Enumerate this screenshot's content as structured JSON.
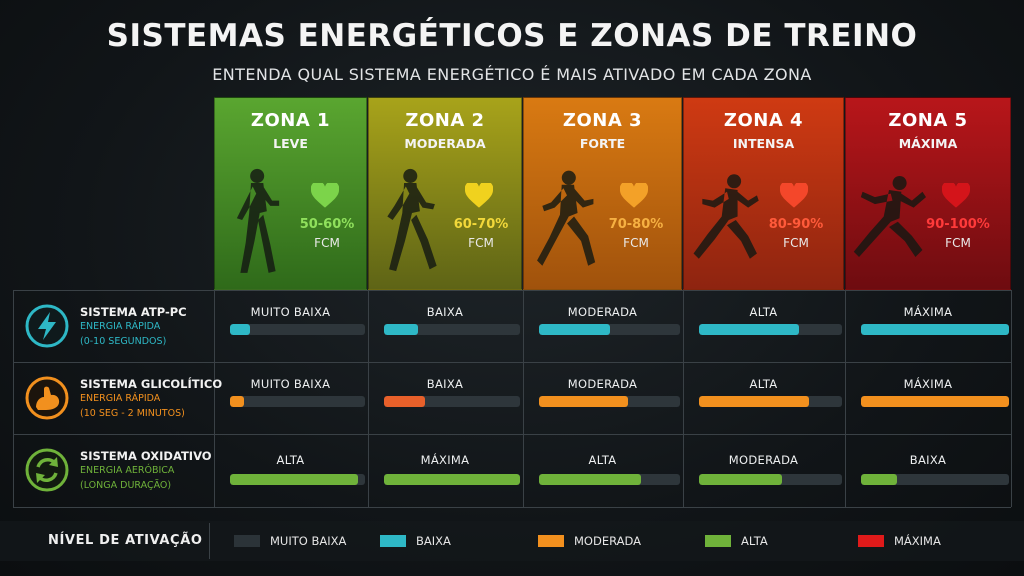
{
  "header": {
    "title": "SISTEMAS ENERGÉTICOS E ZONAS DE TREINO",
    "subtitle": "ENTENDA QUAL SISTEMA ENERGÉTICO É MAIS ATIVADO EM CADA ZONA"
  },
  "zones": [
    {
      "title": "ZONA 1",
      "intensity": "LEVE",
      "percent": "50-60%",
      "unit": "FCM",
      "heart_color": "#7cd44a",
      "percent_color": "#8fe05c",
      "bg_top": "#5aa630",
      "bg_bottom": "#2f6a1a"
    },
    {
      "title": "ZONA 2",
      "intensity": "MODERADA",
      "percent": "60-70%",
      "unit": "FCM",
      "heart_color": "#f0d21e",
      "percent_color": "#f2d83a",
      "bg_top": "#a8a31a",
      "bg_bottom": "#5e6416"
    },
    {
      "title": "ZONA 3",
      "intensity": "FORTE",
      "percent": "70-80%",
      "unit": "FCM",
      "heart_color": "#f3a128",
      "percent_color": "#f6b042",
      "bg_top": "#d97a12",
      "bg_bottom": "#a0520c"
    },
    {
      "title": "ZONA 4",
      "intensity": "INTENSA",
      "percent": "80-90%",
      "unit": "FCM",
      "heart_color": "#f4472a",
      "percent_color": "#ff5a3a",
      "bg_top": "#cf3a12",
      "bg_bottom": "#8e2410"
    },
    {
      "title": "ZONA 5",
      "intensity": "MÁXIMA",
      "percent": "90-100%",
      "unit": "FCM",
      "heart_color": "#d4141a",
      "percent_color": "#ff3a3a",
      "bg_top": "#b8161a",
      "bg_bottom": "#6e0c10"
    }
  ],
  "systems": [
    {
      "name": "SISTEMA ATP-PC",
      "sub1": "ENERGIA RÁPIDA",
      "sub2": "(0-10 SEGUNDOS)",
      "icon": "lightning-icon",
      "color": "#2eb8c6",
      "levels": [
        {
          "label": "MUITO BAIXA",
          "fill": 0.15
        },
        {
          "label": "BAIXA",
          "fill": 0.25
        },
        {
          "label": "MODERADA",
          "fill": 0.5
        },
        {
          "label": "ALTA",
          "fill": 0.7
        },
        {
          "label": "MÁXIMA",
          "fill": 1.0
        }
      ]
    },
    {
      "name": "SISTEMA GLICOLÍTICO",
      "sub1": "ENERGIA RÁPIDA",
      "sub2": "(10 SEG - 2 MINUTOS)",
      "icon": "flexed-arm-icon",
      "color": "#f2901e",
      "levels": [
        {
          "label": "MUITO BAIXA",
          "fill": 0.1
        },
        {
          "label": "BAIXA",
          "fill": 0.3
        },
        {
          "label": "MODERADA",
          "fill": 0.63
        },
        {
          "label": "ALTA",
          "fill": 0.77
        },
        {
          "label": "MÁXIMA",
          "fill": 1.0
        }
      ]
    },
    {
      "name": "SISTEMA OXIDATIVO",
      "sub1": "ENERGIA AERÓBICA",
      "sub2": "(LONGA DURAÇÃO)",
      "icon": "cycle-arrows-icon",
      "color": "#6fb23a",
      "levels": [
        {
          "label": "ALTA",
          "fill": 0.95
        },
        {
          "label": "MÁXIMA",
          "fill": 1.0
        },
        {
          "label": "ALTA",
          "fill": 0.72
        },
        {
          "label": "MODERADA",
          "fill": 0.58
        },
        {
          "label": "BAIXA",
          "fill": 0.24
        }
      ]
    }
  ],
  "legend": {
    "title": "NÍVEL DE ATIVAÇÃO",
    "items": [
      {
        "label": "MUITO BAIXA",
        "color": "#2b3338"
      },
      {
        "label": "BAIXA",
        "color": "#2eb8c6"
      },
      {
        "label": "MODERADA",
        "color": "#f2901e"
      },
      {
        "label": "ALTA",
        "color": "#6fb23a"
      },
      {
        "label": "MÁXIMA",
        "color": "#e01a1a"
      }
    ]
  }
}
